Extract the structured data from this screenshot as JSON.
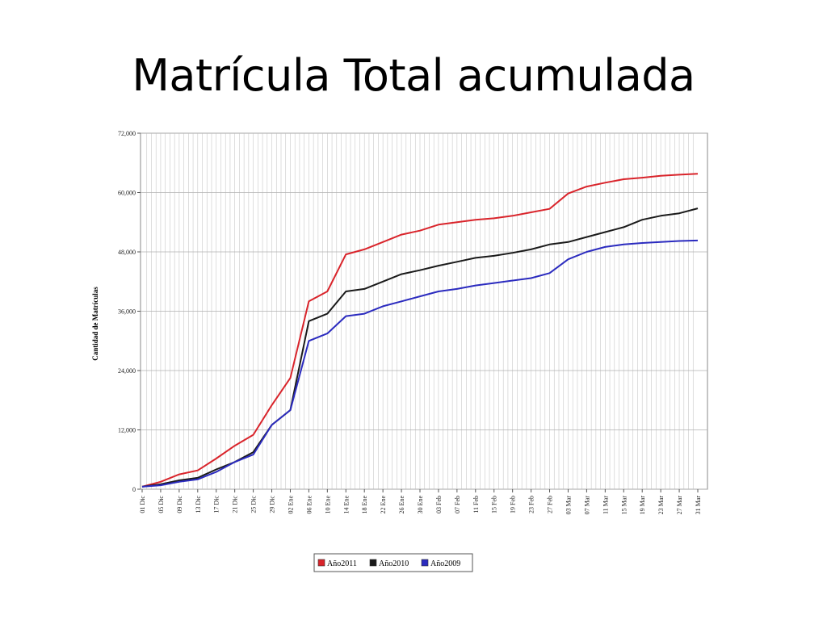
{
  "slide": {
    "title": "Matrícula Total acumulada"
  },
  "chart_data": {
    "type": "line",
    "title": "",
    "ylabel": "Cantidad de Matrículas",
    "xlabel": "",
    "ylim": [
      0,
      72000
    ],
    "yticks": [
      0,
      12000,
      24000,
      36000,
      48000,
      60000,
      72000
    ],
    "ytick_labels": [
      "0",
      "12,000",
      "24,000",
      "36,000",
      "48,000",
      "60,000",
      "72,000"
    ],
    "xtick_labels": [
      "01 Dic",
      "05 Dic",
      "09 Dic",
      "13 Dic",
      "17 Dic",
      "21 Dic",
      "25 Dic",
      "29 Dic",
      "02 Ene",
      "06 Ene",
      "10 Ene",
      "14 Ene",
      "18 Ene",
      "22 Ene",
      "26 Ene",
      "30 Ene",
      "03 Feb",
      "07 Feb",
      "11 Feb",
      "15 Feb",
      "19 Feb",
      "23 Feb",
      "27 Feb",
      "03 Mar",
      "07 Mar",
      "11 Mar",
      "15 Mar",
      "19 Mar",
      "23 Mar",
      "27 Mar",
      "31 Mar"
    ],
    "x": [
      "01 Dic",
      "05 Dic",
      "09 Dic",
      "13 Dic",
      "17 Dic",
      "21 Dic",
      "25 Dic",
      "29 Dic",
      "02 Ene",
      "06 Ene",
      "10 Ene",
      "14 Ene",
      "18 Ene",
      "22 Ene",
      "26 Ene",
      "30 Ene",
      "03 Feb",
      "07 Feb",
      "11 Feb",
      "15 Feb",
      "19 Feb",
      "23 Feb",
      "27 Feb",
      "03 Mar",
      "07 Mar",
      "11 Mar",
      "15 Mar",
      "19 Mar",
      "23 Mar",
      "27 Mar",
      "31 Mar"
    ],
    "grid": true,
    "legend_position": "bottom",
    "series": [
      {
        "name": "Año2011",
        "color": "#d9242b",
        "values": [
          500,
          1500,
          3000,
          3800,
          6200,
          8800,
          11000,
          17000,
          22500,
          38000,
          40000,
          47500,
          48500,
          50000,
          51500,
          52300,
          53500,
          54000,
          54500,
          54800,
          55300,
          56000,
          56700,
          59800,
          61200,
          62000,
          62700,
          63000,
          63400,
          63600,
          63800
        ]
      },
      {
        "name": "Año2010",
        "color": "#1a1a1a",
        "values": [
          500,
          1000,
          1800,
          2300,
          4000,
          5500,
          7500,
          13000,
          16000,
          34000,
          35500,
          40000,
          40500,
          42000,
          43500,
          44300,
          45200,
          46000,
          46800,
          47200,
          47800,
          48500,
          49500,
          50000,
          51000,
          52000,
          53000,
          54500,
          55300,
          55800,
          56800
        ]
      },
      {
        "name": "Año2009",
        "color": "#2b2bbf",
        "values": [
          500,
          800,
          1500,
          2000,
          3500,
          5500,
          7000,
          13000,
          16000,
          30000,
          31500,
          35000,
          35500,
          37000,
          38000,
          39000,
          40000,
          40500,
          41200,
          41700,
          42200,
          42700,
          43700,
          46500,
          48000,
          49000,
          49500,
          49800,
          50000,
          50200,
          50300
        ]
      }
    ]
  }
}
